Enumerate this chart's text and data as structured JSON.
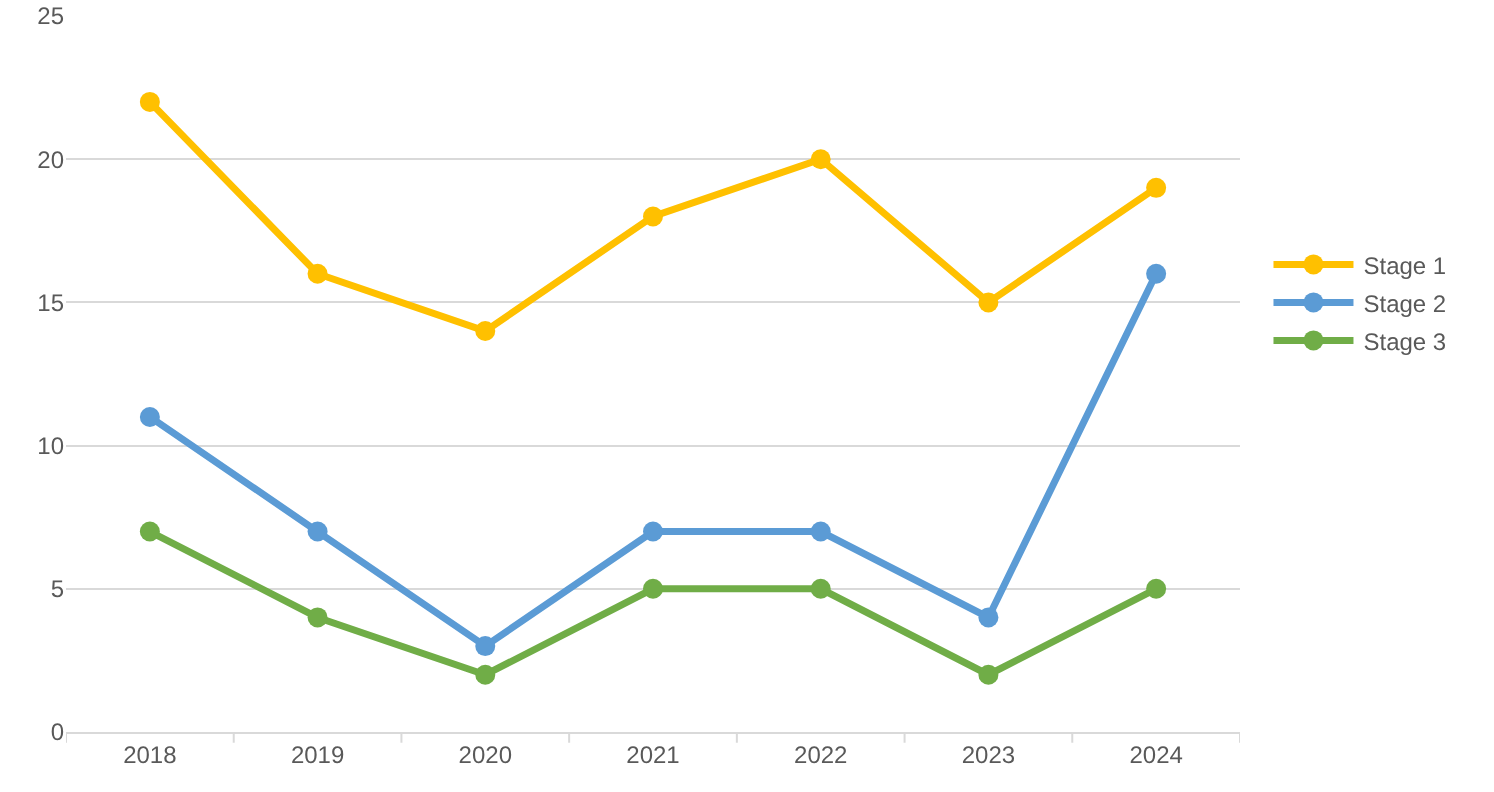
{
  "chart_data": {
    "type": "line",
    "categories": [
      "2018",
      "2019",
      "2020",
      "2021",
      "2022",
      "2023",
      "2024"
    ],
    "series": [
      {
        "name": "Stage 1",
        "color": "#ffc000",
        "values": [
          22,
          16,
          14,
          18,
          20,
          15,
          19
        ]
      },
      {
        "name": "Stage 2",
        "color": "#5b9bd5",
        "values": [
          11,
          7,
          3,
          7,
          7,
          4,
          16
        ]
      },
      {
        "name": "Stage 3",
        "color": "#70ad47",
        "values": [
          7,
          4,
          2,
          5,
          5,
          2,
          5
        ]
      }
    ],
    "ylim": [
      0,
      25
    ],
    "yticks": [
      0,
      5,
      10,
      15,
      20,
      25
    ],
    "grid": "y",
    "legend": "right",
    "marker": "circle",
    "line_style": "solid"
  }
}
